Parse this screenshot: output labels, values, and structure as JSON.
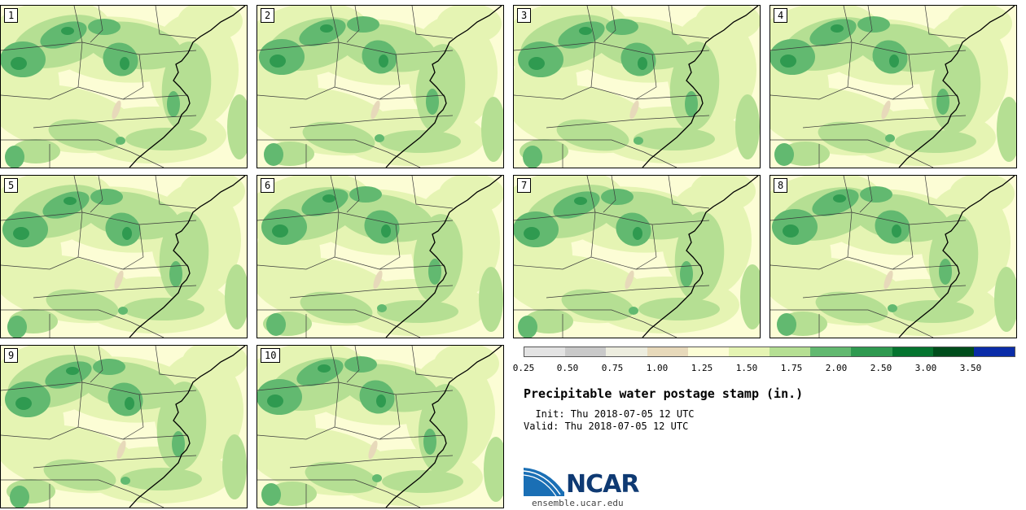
{
  "colors": {
    "bin_0_25": "#e3e3e3",
    "bin_0_50": "#c9c9c9",
    "bin_0_75": "#ededdf",
    "bin_1_00": "#e7d9ba",
    "bin_1_25": "#fcfdd5",
    "bin_1_50": "#e5f4b3",
    "bin_1_75": "#b5df93",
    "bin_2_00": "#62b970",
    "bin_2_50": "#2f9a50",
    "bin_3_00": "#05742f",
    "bin_3_50": "#004d1b",
    "bin_max": "#0a2ca8",
    "map_line": "#3a3a3a",
    "coast": "#000000"
  },
  "members": [
    "1",
    "2",
    "3",
    "4",
    "5",
    "6",
    "7",
    "8",
    "9",
    "10"
  ],
  "colorbar": {
    "ticks": [
      "0.25",
      "0.50",
      "0.75",
      "1.00",
      "1.25",
      "1.50",
      "1.75",
      "2.00",
      "2.50",
      "3.00",
      "3.50"
    ],
    "swatches": [
      "bin_0_25",
      "bin_0_50",
      "bin_0_75",
      "bin_1_00",
      "bin_1_25",
      "bin_1_50",
      "bin_1_75",
      "bin_2_00",
      "bin_2_50",
      "bin_3_00",
      "bin_3_50"
    ]
  },
  "title": "Precipitable water postage stamp (in.)",
  "init_line": "  Init: Thu 2018-07-05 12 UTC",
  "valid_line": "Valid: Thu 2018-07-05 12 UTC",
  "logo": {
    "name": "NCAR",
    "url": "ensemble.ucar.edu"
  }
}
